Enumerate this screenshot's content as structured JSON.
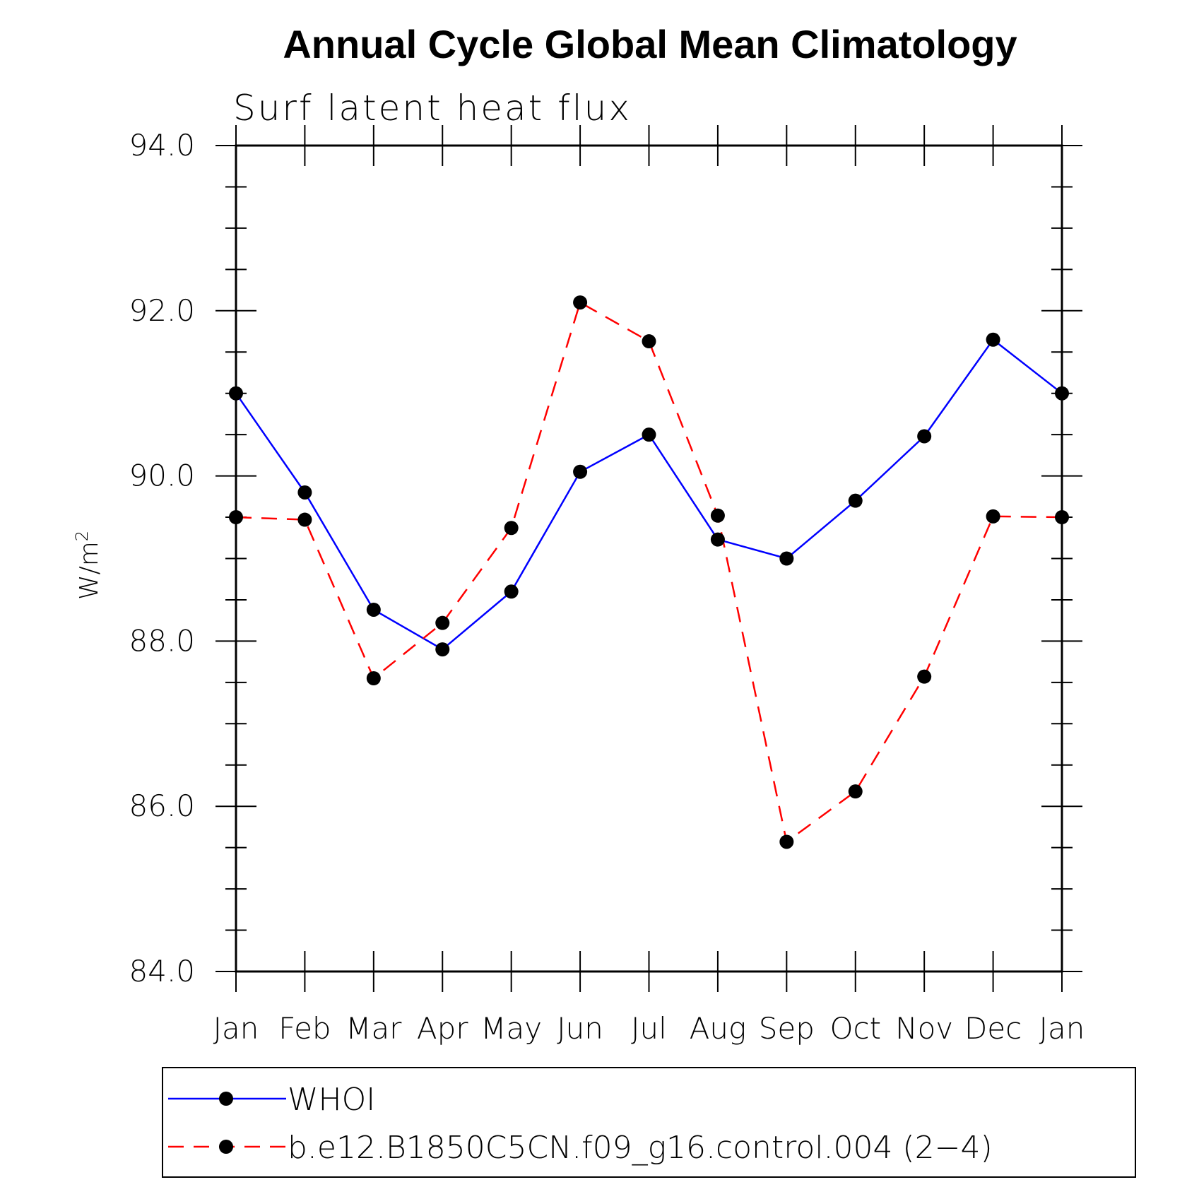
{
  "chart_data": {
    "type": "line",
    "title": "Annual Cycle Global Mean Climatology",
    "subtitle": "Surf latent heat flux",
    "ylabel": "W/m",
    "ylabel_superscript": "2",
    "xlabel": "",
    "categories": [
      "Jan",
      "Feb",
      "Mar",
      "Apr",
      "May",
      "Jun",
      "Jul",
      "Aug",
      "Sep",
      "Oct",
      "Nov",
      "Dec",
      "Jan"
    ],
    "ylim": [
      84.0,
      94.0
    ],
    "yticks": [
      "84.0",
      "86.0",
      "88.0",
      "90.0",
      "92.0",
      "94.0"
    ],
    "series": [
      {
        "name": "WHOI",
        "color": "#0000ff",
        "dash": "solid",
        "values": [
          91.0,
          89.8,
          88.38,
          87.9,
          88.6,
          90.05,
          90.5,
          89.23,
          89.0,
          89.7,
          90.48,
          91.65,
          91.0
        ]
      },
      {
        "name": "b.e12.B1850C5CN.f09_g16.control.004 (2−4)",
        "color": "#ff0000",
        "dash": "dashed",
        "values": [
          89.5,
          89.47,
          87.55,
          88.22,
          89.37,
          92.1,
          91.63,
          89.52,
          85.57,
          86.18,
          87.57,
          89.51,
          89.5
        ]
      }
    ],
    "legend": "bottom"
  }
}
